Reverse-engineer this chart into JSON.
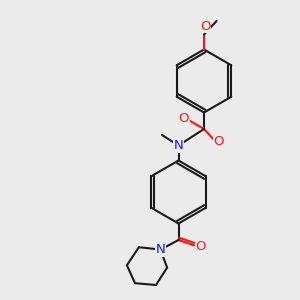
{
  "bg": "#ebebeb",
  "bond_color": "#1a1a1a",
  "lw": 1.5,
  "atom_colors": {
    "N": "#1414ff",
    "O": "#ff1414",
    "S": "#b8b800",
    "C": "#1a1a1a"
  },
  "fs": 9.5
}
